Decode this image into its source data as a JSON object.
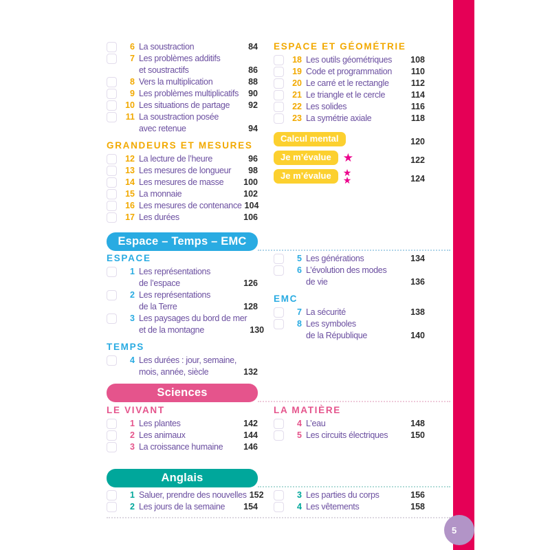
{
  "page_tab": {
    "number": "5"
  },
  "colors": {
    "yellow": "#f2a900",
    "badge_yellow": "#fcd02f",
    "blue": "#29abe2",
    "pink": "#e5548c",
    "teal": "#00a79b",
    "purple": "#6b4fa0",
    "magenta": "#ec008c",
    "stripe": "#e50056",
    "tab": "#b294c7",
    "dark": "#2b2b2b"
  },
  "maths": {
    "left_intro_items": [
      {
        "num": "6",
        "lines": [
          "La soustraction"
        ],
        "page": "84"
      },
      {
        "num": "7",
        "lines": [
          "Les problèmes additifs",
          "et soustractifs"
        ],
        "page": "86"
      },
      {
        "num": "8",
        "lines": [
          "Vers la multiplication"
        ],
        "page": "88"
      },
      {
        "num": "9",
        "lines": [
          "Les problèmes multiplicatifs"
        ],
        "page": "90"
      },
      {
        "num": "10",
        "lines": [
          "Les situations de partage"
        ],
        "page": "92"
      },
      {
        "num": "11",
        "lines": [
          "La soustraction posée",
          "avec retenue"
        ],
        "page": "94"
      }
    ],
    "grandeurs_header": "GRANDEURS ET MESURES",
    "grandeurs_items": [
      {
        "num": "12",
        "lines": [
          "La lecture de l’heure"
        ],
        "page": "96"
      },
      {
        "num": "13",
        "lines": [
          "Les mesures de longueur"
        ],
        "page": "98"
      },
      {
        "num": "14",
        "lines": [
          "Les mesures de masse"
        ],
        "page": "100"
      },
      {
        "num": "15",
        "lines": [
          "La monnaie"
        ],
        "page": "102"
      },
      {
        "num": "16",
        "lines": [
          "Les mesures de contenance"
        ],
        "page": "104"
      },
      {
        "num": "17",
        "lines": [
          "Les durées"
        ],
        "page": "106"
      }
    ],
    "geometrie_header": "ESPACE ET GÉOMÉTRIE",
    "geometrie_items": [
      {
        "num": "18",
        "lines": [
          "Les outils géométriques"
        ],
        "page": "108"
      },
      {
        "num": "19",
        "lines": [
          "Code et programmation"
        ],
        "page": "110"
      },
      {
        "num": "20",
        "lines": [
          "Le carré et le rectangle"
        ],
        "page": "112"
      },
      {
        "num": "21",
        "lines": [
          "Le triangle et le cercle"
        ],
        "page": "114"
      },
      {
        "num": "22",
        "lines": [
          "Les solides"
        ],
        "page": "116"
      },
      {
        "num": "23",
        "lines": [
          "La symétrie axiale"
        ],
        "page": "118"
      }
    ],
    "badges": [
      {
        "label": "Calcul mental",
        "stars": 0,
        "page": "120"
      },
      {
        "label": "Je m’évalue",
        "stars": 1,
        "page": "122"
      },
      {
        "label": "Je m’évalue",
        "stars": 2,
        "page": "124"
      }
    ]
  },
  "etemc": {
    "band": "Espace – Temps – EMC",
    "espace_header": "ESPACE",
    "espace_items": [
      {
        "num": "1",
        "lines": [
          "Les représentations",
          "de l’espace"
        ],
        "page": "126"
      },
      {
        "num": "2",
        "lines": [
          "Les représentations",
          "de la Terre"
        ],
        "page": "128"
      },
      {
        "num": "3",
        "lines": [
          "Les paysages du bord de mer",
          "et de la montagne"
        ],
        "page": "130"
      }
    ],
    "temps_header": "TEMPS",
    "temps_items": [
      {
        "num": "4",
        "lines": [
          "Les durées : jour, semaine,",
          "mois, année, siècle"
        ],
        "page": "132"
      }
    ],
    "right_top_items": [
      {
        "num": "5",
        "lines": [
          "Les générations"
        ],
        "page": "134"
      },
      {
        "num": "6",
        "lines": [
          "L’évolution des modes",
          "de vie"
        ],
        "page": "136"
      }
    ],
    "emc_header": "EMC",
    "emc_items": [
      {
        "num": "7",
        "lines": [
          "La sécurité"
        ],
        "page": "138"
      },
      {
        "num": "8",
        "lines": [
          "Les symboles",
          "de la République"
        ],
        "page": "140"
      }
    ]
  },
  "sciences": {
    "band": "Sciences",
    "vivant_header": "LE VIVANT",
    "vivant_items": [
      {
        "num": "1",
        "lines": [
          "Les plantes"
        ],
        "page": "142"
      },
      {
        "num": "2",
        "lines": [
          "Les animaux"
        ],
        "page": "144"
      },
      {
        "num": "3",
        "lines": [
          "La croissance humaine"
        ],
        "page": "146"
      }
    ],
    "matiere_header": "LA MATIÈRE",
    "matiere_items": [
      {
        "num": "4",
        "lines": [
          "L’eau"
        ],
        "page": "148"
      },
      {
        "num": "5",
        "lines": [
          "Les circuits électriques"
        ],
        "page": "150"
      }
    ]
  },
  "anglais": {
    "band": "Anglais",
    "left_items": [
      {
        "num": "1",
        "lines": [
          "Saluer, prendre des nouvelles"
        ],
        "page": "152"
      },
      {
        "num": "2",
        "lines": [
          "Les jours de la semaine"
        ],
        "page": "154"
      }
    ],
    "right_items": [
      {
        "num": "3",
        "lines": [
          "Les parties du corps"
        ],
        "page": "156"
      },
      {
        "num": "4",
        "lines": [
          "Les vêtements"
        ],
        "page": "158"
      }
    ]
  }
}
